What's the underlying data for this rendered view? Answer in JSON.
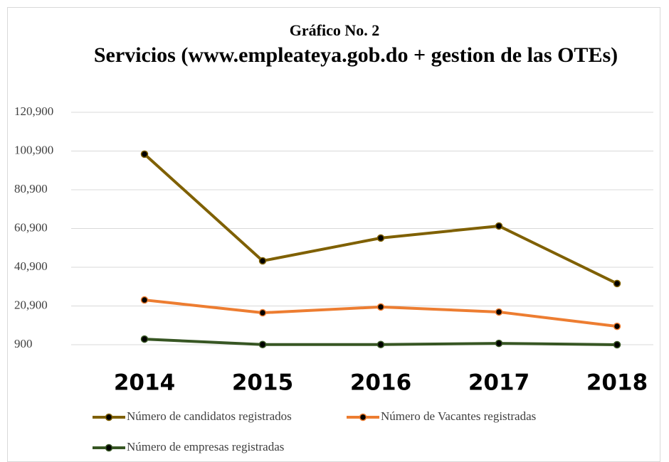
{
  "chart_data": {
    "type": "line",
    "supertitle": "Gráfico No. 2",
    "title": "Servicios (www.empleateya.gob.do + gestion de las OTEs)",
    "categories": [
      "2014",
      "2015",
      "2016",
      "2017",
      "2018"
    ],
    "series": [
      {
        "name": "Número de candidatos registrados",
        "color": "#7f6000",
        "values": [
          99300,
          44200,
          56000,
          62200,
          32500
        ]
      },
      {
        "name": "Número de Vacantes registradas",
        "color": "#ed7d31",
        "values": [
          24000,
          17400,
          20400,
          17800,
          10400
        ]
      },
      {
        "name": "Número de empresas registradas",
        "color": "#375623",
        "values": [
          3800,
          1000,
          1000,
          1600,
          900
        ]
      }
    ],
    "ylim": [
      900,
      120900
    ],
    "yticks": [
      {
        "value": 900,
        "label": "900"
      },
      {
        "value": 20900,
        "label": "20,900"
      },
      {
        "value": 40900,
        "label": "40,900"
      },
      {
        "value": 60900,
        "label": "60,900"
      },
      {
        "value": 80900,
        "label": "80,900"
      },
      {
        "value": 100900,
        "label": "100,900"
      },
      {
        "value": 120900,
        "label": "120,900"
      }
    ],
    "grid": true,
    "legend": "bottom"
  }
}
